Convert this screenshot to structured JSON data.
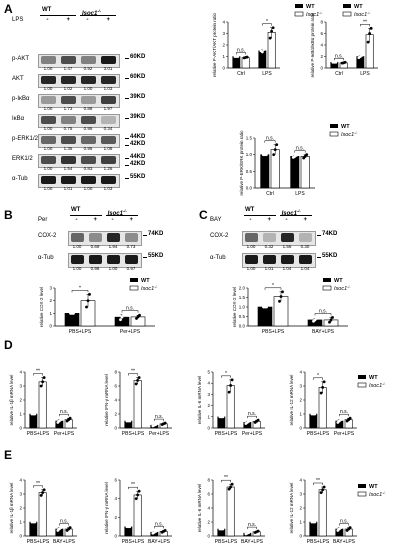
{
  "panels": {
    "A": "A",
    "B": "B",
    "C": "C",
    "D": "D",
    "E": "E"
  },
  "genotypes": {
    "wt": "WT",
    "ko": "Isoc1"
  },
  "ko_sup": "-/-",
  "panelA": {
    "treat_label": "LPS",
    "treat_signs": [
      "-",
      "+",
      "-",
      "+"
    ],
    "rows": [
      {
        "label": "p-AKT",
        "kd": "60KD",
        "nums": [
          "1.00",
          "1.47",
          "0.92",
          "3.01"
        ],
        "int": [
          0.5,
          0.7,
          0.5,
          0.9
        ]
      },
      {
        "label": "AKT",
        "kd": "60KD",
        "nums": [
          "1.00",
          "1.02",
          "1.00",
          "1.03"
        ],
        "int": [
          0.85,
          0.85,
          0.85,
          0.85
        ]
      },
      {
        "label": "p-IκBα",
        "kd": "39KD",
        "nums": [
          "1.00",
          "1.73",
          "0.88",
          "1.97"
        ],
        "int": [
          0.4,
          0.7,
          0.4,
          0.75
        ]
      },
      {
        "label": "IκBα",
        "kd": "39KD",
        "nums": [
          "1.00",
          "0.75",
          "0.95",
          "0.34"
        ],
        "int": [
          0.7,
          0.5,
          0.7,
          0.3
        ]
      },
      {
        "label": "p-ERK1/2",
        "kd": "44KD 42KD",
        "nums": [
          "1.00",
          "1.35",
          "0.95",
          "1.08"
        ],
        "int": [
          0.6,
          0.7,
          0.6,
          0.65
        ]
      },
      {
        "label": "ERK1/2",
        "kd": "44KD 42KD",
        "nums": [
          "1.00",
          "1.54",
          "0.83",
          "1.26"
        ],
        "int": [
          0.7,
          0.8,
          0.7,
          0.75
        ]
      },
      {
        "label": "α-Tub",
        "kd": "55KD",
        "nums": [
          "1.00",
          "1.01",
          "1.00",
          "1.03"
        ],
        "int": [
          0.9,
          0.9,
          0.9,
          0.9
        ]
      }
    ]
  },
  "panelB": {
    "treat_label": "Per",
    "treat_signs": [
      "-",
      "+",
      "-",
      "+"
    ],
    "rows": [
      {
        "label": "COX-2",
        "kd": "74KD",
        "nums": [
          "1.00",
          "0.69",
          "1.94",
          "0.73"
        ],
        "int": [
          0.6,
          0.45,
          0.85,
          0.45
        ]
      },
      {
        "label": "α-Tub",
        "kd": "55KD",
        "nums": [
          "1.00",
          "0.98",
          "1.00",
          "0.97"
        ],
        "int": [
          0.9,
          0.9,
          0.9,
          0.9
        ]
      }
    ]
  },
  "panelC": {
    "treat_label": "BAY",
    "treat_signs": [
      "-",
      "+",
      "-",
      "+"
    ],
    "rows": [
      {
        "label": "COX-2",
        "kd": "74KD",
        "nums": [
          "1.00",
          "0.32",
          "1.56",
          "0.30"
        ],
        "int": [
          0.6,
          0.3,
          0.85,
          0.3
        ]
      },
      {
        "label": "α-Tub",
        "kd": "55KD",
        "nums": [
          "1.00",
          "1.01",
          "1.04",
          "1.04"
        ],
        "int": [
          0.9,
          0.9,
          0.9,
          0.9
        ]
      }
    ]
  },
  "legend": {
    "wt": "WT",
    "ko": "Isoc1"
  },
  "chart_data": [
    {
      "id": "A1",
      "type": "bar",
      "ylabel": "relative P-AKT/AKT protein ratio",
      "categories": [
        "Ctrl",
        "LPS"
      ],
      "ylim": [
        0,
        4
      ],
      "yticks": [
        "0",
        "1",
        "2",
        "3",
        "4"
      ],
      "series": [
        {
          "name": "WT",
          "values": [
            1.0,
            1.5
          ]
        },
        {
          "name": "Isoc1-/-",
          "values": [
            0.9,
            3.1
          ]
        }
      ],
      "points": [
        [
          [
            1.0,
            1.0,
            1.0
          ],
          [
            1.5,
            1.4,
            1.6
          ]
        ],
        [
          [
            0.88,
            0.92,
            0.95
          ],
          [
            2.6,
            3.2,
            3.5
          ]
        ]
      ],
      "sig": [
        "n.s.",
        "*"
      ]
    },
    {
      "id": "A2",
      "type": "bar",
      "ylabel": "relative P-IκBα/IκBα protein ratio",
      "categories": [
        "Ctrl",
        "LPS"
      ],
      "ylim": [
        0,
        8
      ],
      "yticks": [
        "0",
        "2",
        "4",
        "6",
        "8"
      ],
      "series": [
        {
          "name": "WT",
          "values": [
            1.0,
            2.0
          ]
        },
        {
          "name": "Isoc1-/-",
          "values": [
            0.9,
            5.8
          ]
        }
      ],
      "points": [
        [
          [
            1.0,
            1.0,
            1.0
          ],
          [
            1.8,
            2.0,
            2.2
          ]
        ],
        [
          [
            0.85,
            0.9,
            1.0
          ],
          [
            4.5,
            6.0,
            6.9
          ]
        ]
      ],
      "sig": [
        "n.s.",
        "**"
      ]
    },
    {
      "id": "A3",
      "type": "bar",
      "ylabel": "relative P-ERK/ERK protein ratio",
      "categories": [
        "Ctrl",
        "LPS"
      ],
      "ylim": [
        0,
        1.5
      ],
      "yticks": [
        "0.0",
        "0.5",
        "1.0",
        "1.5"
      ],
      "series": [
        {
          "name": "WT",
          "values": [
            1.0,
            0.95
          ]
        },
        {
          "name": "Isoc1-/-",
          "values": [
            1.15,
            0.95
          ]
        }
      ],
      "points": [
        [
          [
            1.0,
            1.0,
            1.0
          ],
          [
            0.92,
            0.95,
            0.98
          ]
        ],
        [
          [
            1.0,
            1.15,
            1.3
          ],
          [
            0.9,
            0.95,
            1.0
          ]
        ]
      ],
      "sig": [
        "n.s.",
        "n.s."
      ]
    },
    {
      "id": "B1",
      "type": "bar",
      "ylabel": "relative COX-2 level",
      "categories": [
        "PBS+LPS",
        "Per+LPS"
      ],
      "ylim": [
        0,
        3
      ],
      "yticks": [
        "0",
        "1",
        "2",
        "3"
      ],
      "series": [
        {
          "name": "WT",
          "values": [
            1.0,
            0.7
          ]
        },
        {
          "name": "Isoc1-/-",
          "values": [
            2.0,
            0.72
          ]
        }
      ],
      "points": [
        [
          [
            1.0,
            1.0,
            1.0
          ],
          [
            0.5,
            0.7,
            0.9
          ]
        ],
        [
          [
            1.5,
            2.0,
            2.5
          ],
          [
            0.6,
            0.72,
            0.85
          ]
        ]
      ],
      "sig": [
        "*",
        "n.s."
      ]
    },
    {
      "id": "C1",
      "type": "bar",
      "ylabel": "relative COX-2 level",
      "categories": [
        "PBS+LPS",
        "BAY+LPS"
      ],
      "ylim": [
        0,
        2.0
      ],
      "yticks": [
        "0.0",
        "0.5",
        "1.0",
        "1.5",
        "2.0"
      ],
      "series": [
        {
          "name": "WT",
          "values": [
            1.0,
            0.32
          ]
        },
        {
          "name": "Isoc1-/-",
          "values": [
            1.55,
            0.32
          ]
        }
      ],
      "points": [
        [
          [
            1.0,
            1.0,
            1.0
          ],
          [
            0.25,
            0.32,
            0.4
          ]
        ],
        [
          [
            1.3,
            1.55,
            1.8
          ],
          [
            0.2,
            0.32,
            0.45
          ]
        ]
      ],
      "sig": [
        "*",
        "n.s."
      ]
    },
    {
      "id": "D1",
      "type": "bar",
      "ylabel": "relative IL-1β mRNA level",
      "categories": [
        "PBS+LPS",
        "Per+LPS"
      ],
      "ylim": [
        0,
        4
      ],
      "yticks": [
        "0",
        "1",
        "2",
        "3",
        "4"
      ],
      "series": [
        {
          "name": "WT",
          "values": [
            1.0,
            0.5
          ]
        },
        {
          "name": "Isoc1-/-",
          "values": [
            3.3,
            0.6
          ]
        }
      ],
      "points": [
        [
          [
            1.0,
            1.0,
            1.0
          ],
          [
            0.4,
            0.5,
            0.6
          ]
        ],
        [
          [
            3.0,
            3.3,
            3.6
          ],
          [
            0.5,
            0.6,
            0.7
          ]
        ]
      ],
      "sig": [
        "**",
        "n.s."
      ]
    },
    {
      "id": "D2",
      "type": "bar",
      "ylabel": "relative IFN-γ mRNA level",
      "categories": [
        "PBS+LPS",
        "Per+LPS"
      ],
      "ylim": [
        0,
        8
      ],
      "yticks": [
        "0",
        "2",
        "4",
        "6",
        "8"
      ],
      "series": [
        {
          "name": "WT",
          "values": [
            1.0,
            0.4
          ]
        },
        {
          "name": "Isoc1-/-",
          "values": [
            6.8,
            0.6
          ]
        }
      ],
      "points": [
        [
          [
            1.0,
            1.0,
            1.0
          ],
          [
            0.3,
            0.4,
            0.5
          ]
        ],
        [
          [
            6.3,
            6.8,
            7.2
          ],
          [
            0.5,
            0.6,
            0.7
          ]
        ]
      ],
      "sig": [
        "**",
        "n.s."
      ]
    },
    {
      "id": "D3",
      "type": "bar",
      "ylabel": "relative IL-6 mRNA level",
      "categories": [
        "PBS+LPS",
        "Per+LPS"
      ],
      "ylim": [
        0,
        5
      ],
      "yticks": [
        "0",
        "1",
        "2",
        "3",
        "4",
        "5"
      ],
      "series": [
        {
          "name": "WT",
          "values": [
            1.0,
            0.5
          ]
        },
        {
          "name": "Isoc1-/-",
          "values": [
            3.8,
            0.6
          ]
        }
      ],
      "points": [
        [
          [
            1.0,
            1.0,
            1.0
          ],
          [
            0.4,
            0.5,
            0.6
          ]
        ],
        [
          [
            3.2,
            3.8,
            4.3
          ],
          [
            0.5,
            0.6,
            0.7
          ]
        ]
      ],
      "sig": [
        "*",
        "n.s."
      ]
    },
    {
      "id": "D4",
      "type": "bar",
      "ylabel": "relative IL-12 mRNA level",
      "categories": [
        "PBS+LPS",
        "Per+LPS"
      ],
      "ylim": [
        0,
        4
      ],
      "yticks": [
        "0",
        "1",
        "2",
        "3",
        "4"
      ],
      "series": [
        {
          "name": "WT",
          "values": [
            1.0,
            0.5
          ]
        },
        {
          "name": "Isoc1-/-",
          "values": [
            2.9,
            0.6
          ]
        }
      ],
      "points": [
        [
          [
            1.0,
            1.0,
            1.0
          ],
          [
            0.4,
            0.5,
            0.6
          ]
        ],
        [
          [
            2.5,
            2.9,
            3.3
          ],
          [
            0.5,
            0.6,
            0.7
          ]
        ]
      ],
      "sig": [
        "*",
        "n.s."
      ]
    },
    {
      "id": "E1",
      "type": "bar",
      "ylabel": "relative IL-1β mRNA level",
      "categories": [
        "PBS+LPS",
        "BAY+LPS"
      ],
      "ylim": [
        0,
        4
      ],
      "yticks": [
        "0",
        "1",
        "2",
        "3",
        "4"
      ],
      "series": [
        {
          "name": "WT",
          "values": [
            1.0,
            0.5
          ]
        },
        {
          "name": "Isoc1-/-",
          "values": [
            3.1,
            0.5
          ]
        }
      ],
      "points": [
        [
          [
            1.0,
            1.0,
            1.0
          ],
          [
            0.4,
            0.5,
            0.6
          ]
        ],
        [
          [
            2.9,
            3.1,
            3.3
          ],
          [
            0.4,
            0.5,
            0.6
          ]
        ]
      ],
      "sig": [
        "**",
        "n.s."
      ]
    },
    {
      "id": "E2",
      "type": "bar",
      "ylabel": "relative IFN-γ mRNA level",
      "categories": [
        "PBS+LPS",
        "BAY+LPS"
      ],
      "ylim": [
        0,
        6
      ],
      "yticks": [
        "0",
        "2",
        "4",
        "6"
      ],
      "series": [
        {
          "name": "WT",
          "values": [
            1.0,
            0.4
          ]
        },
        {
          "name": "Isoc1-/-",
          "values": [
            4.4,
            0.5
          ]
        }
      ],
      "points": [
        [
          [
            1.0,
            1.0,
            1.0
          ],
          [
            0.3,
            0.4,
            0.5
          ]
        ],
        [
          [
            4.0,
            4.4,
            4.8
          ],
          [
            0.4,
            0.5,
            0.6
          ]
        ]
      ],
      "sig": [
        "**",
        "n.s."
      ]
    },
    {
      "id": "E3",
      "type": "bar",
      "ylabel": "relative IL-6 mRNA level",
      "categories": [
        "PBS+LPS",
        "BAY+LPS"
      ],
      "ylim": [
        0,
        8
      ],
      "yticks": [
        "0",
        "2",
        "4",
        "6",
        "8"
      ],
      "series": [
        {
          "name": "WT",
          "values": [
            1.0,
            0.4
          ]
        },
        {
          "name": "Isoc1-/-",
          "values": [
            7.0,
            0.6
          ]
        }
      ],
      "points": [
        [
          [
            1.0,
            1.0,
            1.0
          ],
          [
            0.3,
            0.4,
            0.5
          ]
        ],
        [
          [
            6.7,
            7.0,
            7.4
          ],
          [
            0.5,
            0.6,
            0.7
          ]
        ]
      ],
      "sig": [
        "**",
        "n.s."
      ]
    },
    {
      "id": "E4",
      "type": "bar",
      "ylabel": "relative IL-12 mRNA level",
      "categories": [
        "PBS+LPS",
        "BAY+LPS"
      ],
      "ylim": [
        0,
        4
      ],
      "yticks": [
        "0",
        "1",
        "2",
        "3",
        "4"
      ],
      "series": [
        {
          "name": "WT",
          "values": [
            1.0,
            0.5
          ]
        },
        {
          "name": "Isoc1-/-",
          "values": [
            3.3,
            0.5
          ]
        }
      ],
      "points": [
        [
          [
            1.0,
            1.0,
            1.0
          ],
          [
            0.4,
            0.5,
            0.6
          ]
        ],
        [
          [
            3.1,
            3.3,
            3.5
          ],
          [
            0.4,
            0.5,
            0.6
          ]
        ]
      ],
      "sig": [
        "**",
        "n.s."
      ]
    }
  ]
}
